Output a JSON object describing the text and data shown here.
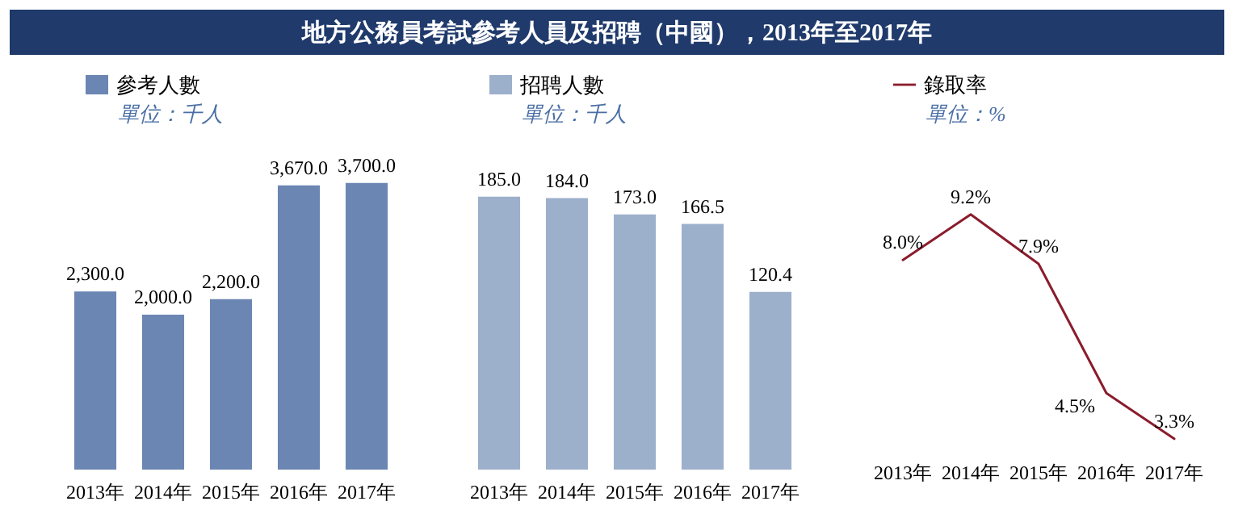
{
  "chart_data": [
    {
      "type": "bar",
      "title": "地方公務員考試參考人員及招聘（中國），2013年至2017年",
      "subtitle": "單位：千人",
      "categories": [
        "2013年",
        "2014年",
        "2015年",
        "2016年",
        "2017年"
      ],
      "series": [
        {
          "name": "參考人數",
          "color": "#6b86b3",
          "values": [
            2300,
            2000,
            2200,
            3670,
            3700
          ],
          "value_labels": [
            "2,300.0",
            "2,000.0",
            "2,200.0",
            "3,670.0",
            "3,700.0"
          ]
        }
      ],
      "legend": "top left",
      "grid": false,
      "tick_labels": "x"
    },
    {
      "type": "bar",
      "subtitle": "單位：千人",
      "categories": [
        "2013年",
        "2014年",
        "2015年",
        "2016年",
        "2017年"
      ],
      "series": [
        {
          "name": "招聘人數",
          "color": "#9db0cb",
          "values": [
            185.0,
            184.0,
            173.0,
            166.5,
            120.4
          ],
          "value_labels": [
            "185.0",
            "184.0",
            "173.0",
            "166.5",
            "120.4"
          ]
        }
      ],
      "legend": "top left",
      "grid": false,
      "tick_labels": "x"
    },
    {
      "type": "line",
      "subtitle": "單位：%",
      "categories": [
        "2013年",
        "2014年",
        "2015年",
        "2016年",
        "2017年"
      ],
      "series": [
        {
          "name": "錄取率",
          "color": "#8b1c2c",
          "values": [
            8.0,
            9.2,
            7.9,
            4.5,
            3.3
          ],
          "value_labels": [
            "8.0%",
            "9.2%",
            "7.9%",
            "4.5%",
            "3.3%"
          ]
        }
      ],
      "legend": "top left",
      "grid": false,
      "tick_labels": "x",
      "marker": "none",
      "line_style": "solid"
    }
  ]
}
